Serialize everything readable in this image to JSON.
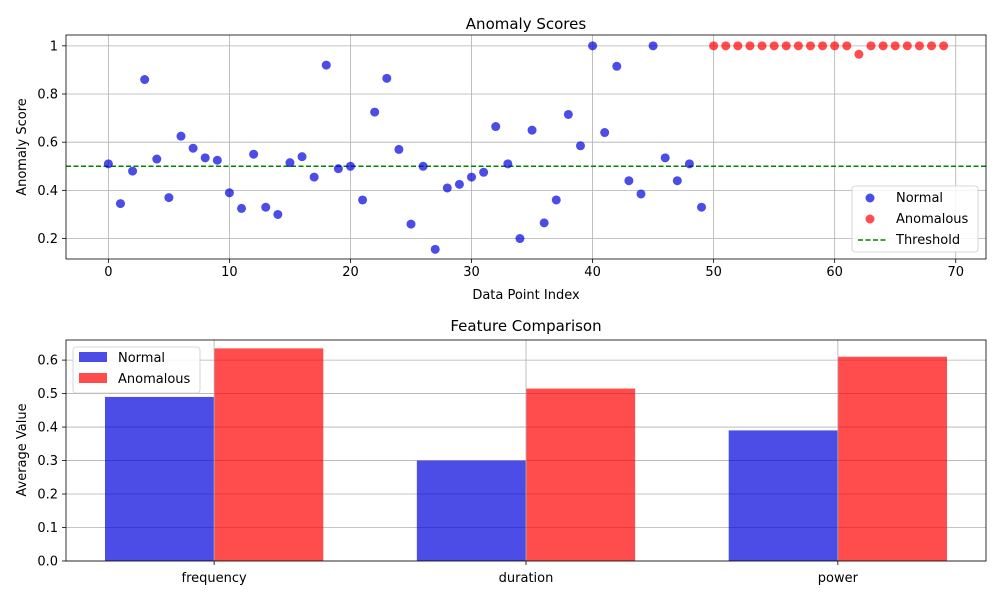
{
  "colors": {
    "normal": "#0000dd",
    "anomalous": "#ff0000",
    "threshold": "#008000",
    "grid": "#b0b0b0"
  },
  "chart_data": [
    {
      "type": "scatter",
      "title": "Anomaly Scores",
      "xlabel": "Data Point Index",
      "ylabel": "Anomaly Score",
      "xlim": [
        -3.5,
        72.5
      ],
      "ylim": [
        0.115,
        1.045
      ],
      "xticks": [
        0,
        10,
        20,
        30,
        40,
        50,
        60,
        70
      ],
      "yticks": [
        0.2,
        0.4,
        0.6,
        0.8,
        1.0
      ],
      "grid": true,
      "legend": "center-right",
      "threshold": {
        "name": "Threshold",
        "y": 0.5
      },
      "series": [
        {
          "name": "Normal",
          "x": [
            0,
            1,
            2,
            3,
            4,
            5,
            6,
            7,
            8,
            9,
            10,
            11,
            12,
            13,
            14,
            15,
            16,
            17,
            18,
            19,
            20,
            21,
            22,
            23,
            24,
            25,
            26,
            27,
            28,
            29,
            30,
            31,
            32,
            33,
            34,
            35,
            36,
            37,
            38,
            39,
            40,
            41,
            42,
            43,
            44,
            45,
            46,
            47,
            48,
            49
          ],
          "y": [
            0.51,
            0.345,
            0.48,
            0.86,
            0.53,
            0.37,
            0.625,
            0.575,
            0.535,
            0.525,
            0.39,
            0.325,
            0.55,
            0.33,
            0.3,
            0.515,
            0.54,
            0.455,
            0.92,
            0.49,
            0.5,
            0.36,
            0.725,
            0.865,
            0.57,
            0.26,
            0.5,
            0.155,
            0.41,
            0.425,
            0.455,
            0.475,
            0.665,
            0.51,
            0.2,
            0.65,
            0.265,
            0.36,
            0.715,
            0.585,
            1.0,
            0.64,
            0.915,
            0.44,
            0.385,
            1.0,
            0.535,
            0.44,
            0.51,
            0.33
          ]
        },
        {
          "name": "Anomalous",
          "x": [
            50,
            51,
            52,
            53,
            54,
            55,
            56,
            57,
            58,
            59,
            60,
            61,
            62,
            63,
            64,
            65,
            66,
            67,
            68,
            69
          ],
          "y": [
            1.0,
            1.0,
            1.0,
            1.0,
            1.0,
            1.0,
            1.0,
            1.0,
            1.0,
            1.0,
            1.0,
            1.0,
            0.965,
            1.0,
            1.0,
            1.0,
            1.0,
            1.0,
            1.0,
            1.0
          ]
        }
      ]
    },
    {
      "type": "bar",
      "title": "Feature Comparison",
      "xlabel": "",
      "ylabel": "Average Value",
      "categories": [
        "frequency",
        "duration",
        "power"
      ],
      "ylim": [
        0,
        0.66
      ],
      "yticks": [
        0.0,
        0.1,
        0.2,
        0.3,
        0.4,
        0.5,
        0.6
      ],
      "grid": true,
      "legend": "top-left",
      "series": [
        {
          "name": "Normal",
          "values": [
            0.49,
            0.3,
            0.39
          ]
        },
        {
          "name": "Anomalous",
          "values": [
            0.635,
            0.515,
            0.61
          ]
        }
      ]
    }
  ]
}
